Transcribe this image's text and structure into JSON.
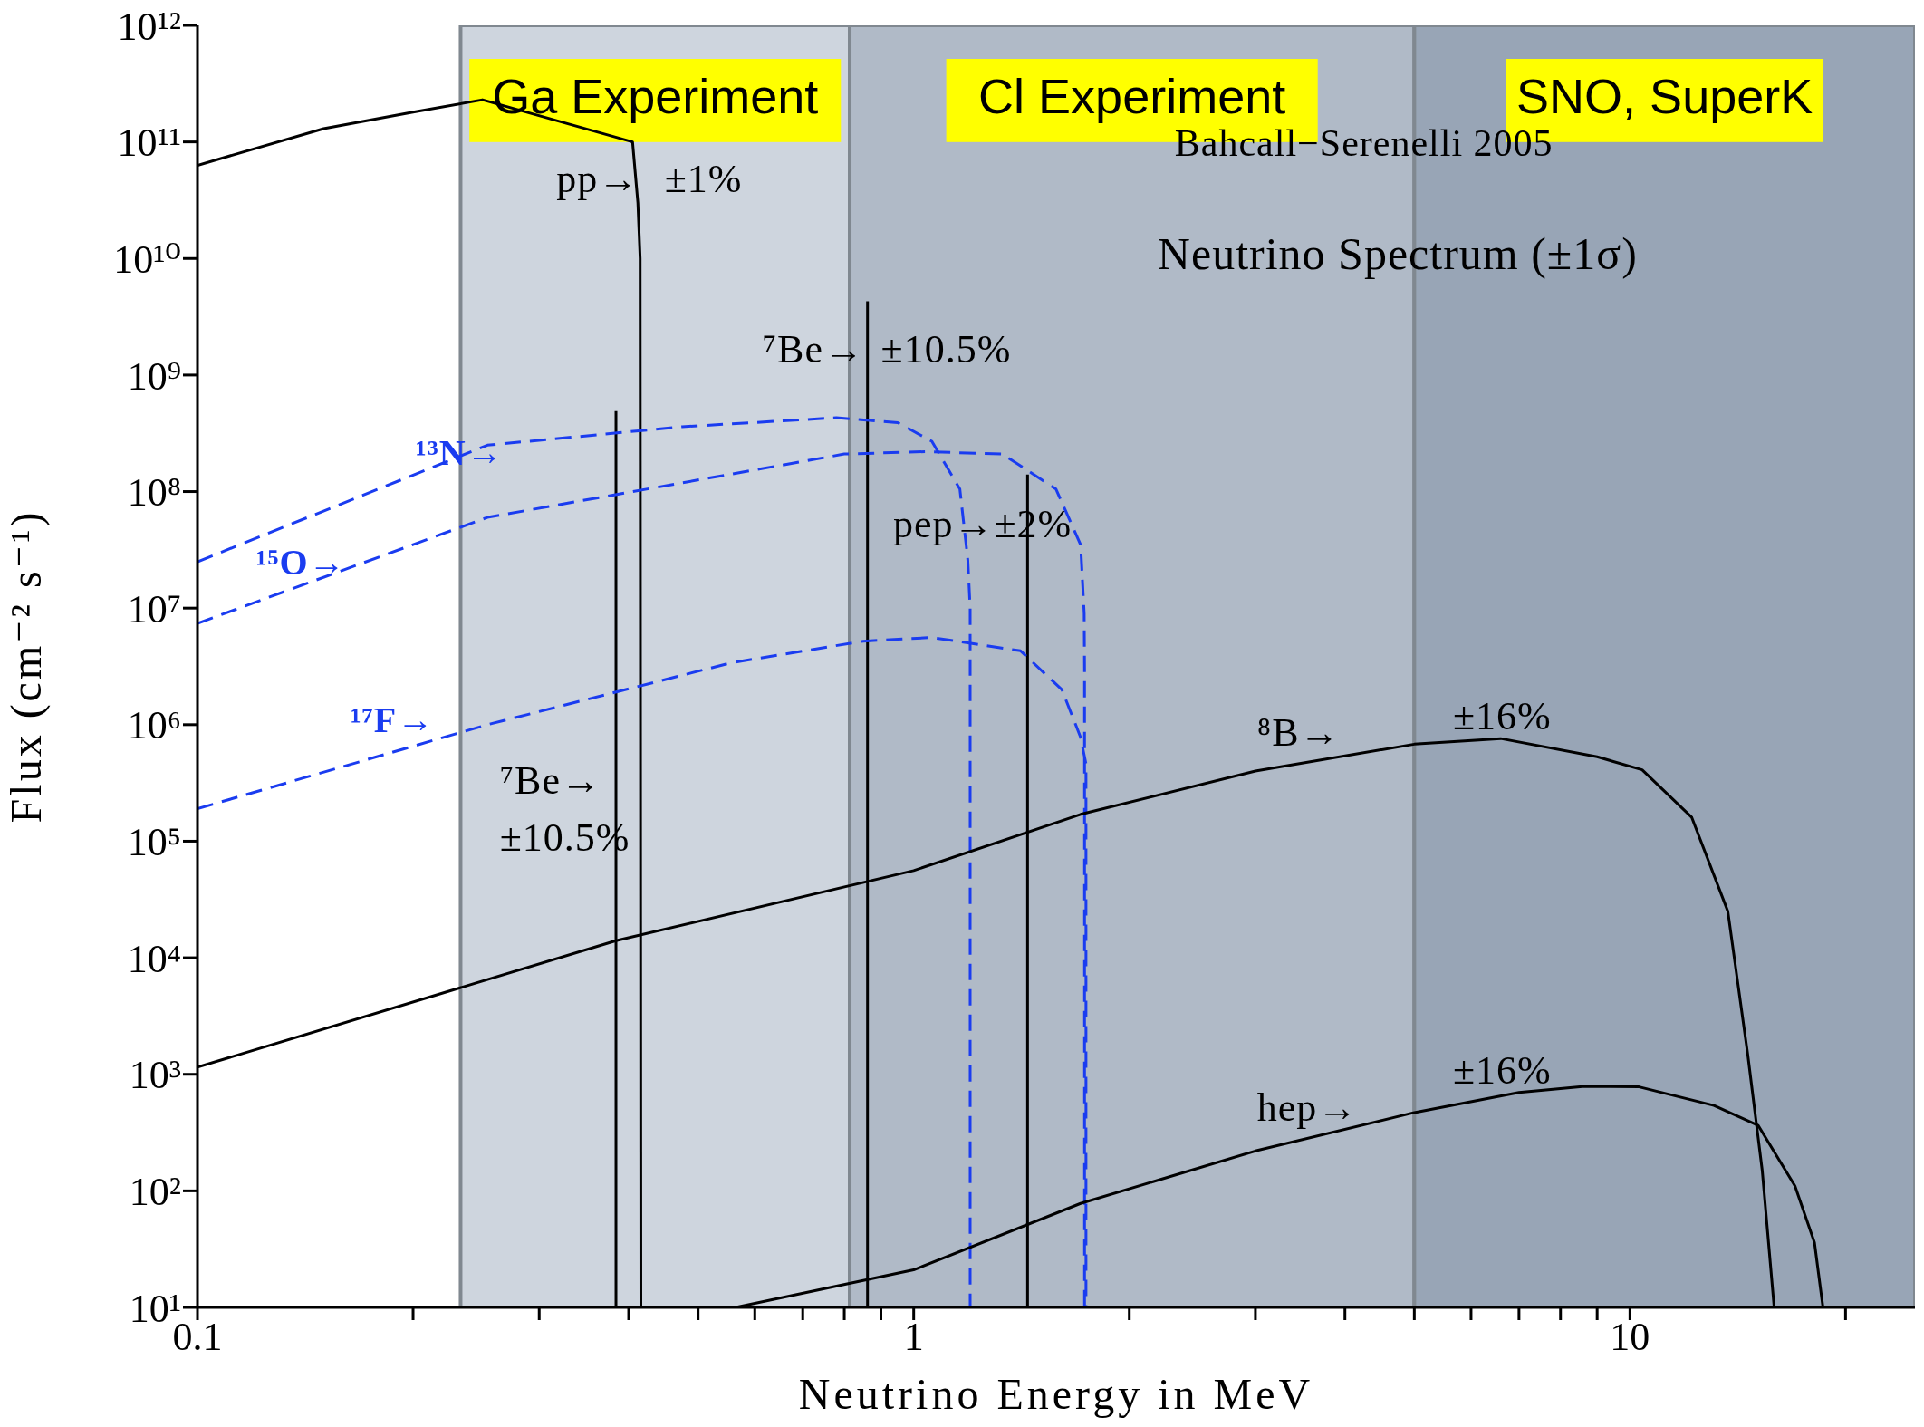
{
  "chart_data": {
    "type": "line",
    "xlabel": "Neutrino Energy in MeV",
    "ylabel": "Flux (cm⁻² s⁻¹)",
    "log": "xy",
    "xlim": [
      0.1,
      25
    ],
    "ylim": [
      10,
      1000000000000.0
    ],
    "xticks": [
      {
        "value": 0.1,
        "label": "0.1"
      },
      {
        "value": 0.2,
        "label": null
      },
      {
        "value": 0.3,
        "label": null
      },
      {
        "value": 0.4,
        "label": null
      },
      {
        "value": 0.5,
        "label": null
      },
      {
        "value": 0.6,
        "label": null
      },
      {
        "value": 0.7,
        "label": null
      },
      {
        "value": 0.8,
        "label": null
      },
      {
        "value": 0.9,
        "label": null
      },
      1,
      {
        "value": 2,
        "label": null
      },
      {
        "value": 3,
        "label": null
      },
      {
        "value": 4,
        "label": null
      },
      {
        "value": 5,
        "label": null
      },
      {
        "value": 6,
        "label": null
      },
      {
        "value": 7,
        "label": null
      },
      {
        "value": 8,
        "label": null
      },
      {
        "value": 9,
        "label": null
      },
      10,
      {
        "value": 20,
        "label": null
      }
    ],
    "yticks": [
      {
        "value": 10,
        "label": "10¹"
      },
      {
        "value": 100,
        "label": "10²"
      },
      {
        "value": 1000,
        "label": "10³"
      },
      {
        "value": 10000,
        "label": "10⁴"
      },
      {
        "value": 100000,
        "label": "10⁵"
      },
      {
        "value": 1000000,
        "label": "10⁶"
      },
      {
        "value": 10000000,
        "label": "10⁷"
      },
      {
        "value": 100000000,
        "label": "10⁸"
      },
      {
        "value": 1000000000,
        "label": "10⁹"
      },
      {
        "value": 10000000000,
        "label": "10¹⁰"
      },
      {
        "value": 100000000000,
        "label": "10¹¹"
      },
      {
        "value": 1000000000000,
        "label": "10¹²"
      }
    ],
    "bands": [
      {
        "axis": "x",
        "from": 0.233,
        "to": 0.814,
        "label": "Ga Experiment",
        "color": "#ced5de"
      },
      {
        "axis": "x",
        "from": 0.814,
        "to": 5,
        "label": "Cl Experiment",
        "color": "#b0bac7"
      },
      {
        "axis": "x",
        "from": 5,
        "to": 25,
        "label": "SNO, SuperK",
        "color": "#98a5b6"
      }
    ],
    "series": [
      {
        "color": "#000000",
        "line_style": "solid",
        "x": [
          0.1,
          0.15,
          0.2,
          0.25,
          0.405,
          0.412,
          0.415,
          0.416
        ],
        "values": [
          63000000000.0,
          130000000000.0,
          180000000000.0,
          230000000000.0,
          100000000000.0,
          30000000000.0,
          10000000000.0,
          10
        ]
      },
      {
        "color": "#000000",
        "line_style": "solid",
        "x": [
          0.384,
          0.384
        ],
        "values": [
          10,
          490000000.0
        ]
      },
      {
        "color": "#000000",
        "line_style": "solid",
        "x": [
          0.862,
          0.862
        ],
        "values": [
          10,
          4300000000.0
        ]
      },
      {
        "color": "#000000",
        "line_style": "solid",
        "x": [
          1.442,
          1.442
        ],
        "values": [
          10,
          140000000.0
        ]
      },
      {
        "color": "#1a3cf0",
        "line_style": "dashed",
        "x": [
          0.1,
          0.254,
          0.475,
          0.78,
          0.95,
          1.06,
          1.16,
          1.19,
          1.199,
          1.199
        ],
        "values": [
          25000000.0,
          250000000.0,
          360000000.0,
          430000000.0,
          390000000.0,
          270000000.0,
          105000000.0,
          26000000.0,
          10000000.0,
          10
        ]
      },
      {
        "color": "#1a3cf0",
        "line_style": "dashed",
        "x": [
          0.1,
          0.254,
          0.8,
          1.04,
          1.33,
          1.58,
          1.71,
          1.73,
          1.732,
          1.732
        ],
        "values": [
          7400000.0,
          60000000.0,
          210000000.0,
          220000000.0,
          210000000.0,
          105000000.0,
          35000000.0,
          9000000.0,
          3000000.0,
          10
        ]
      },
      {
        "color": "#1a3cf0",
        "line_style": "dashed",
        "x": [
          0.1,
          0.254,
          0.557,
          0.85,
          1.06,
          1.41,
          1.61,
          1.71,
          1.74,
          1.74
        ],
        "values": [
          190000.0,
          1000000.0,
          3400000.0,
          5200000.0,
          5600000.0,
          4300000.0,
          2000000.0,
          780000.0,
          460000.0,
          10
        ]
      },
      {
        "color": "#000000",
        "line_style": "solid",
        "x": [
          0.1,
          0.384,
          1.0,
          1.71,
          3.0,
          5.0,
          6.6,
          9.0,
          10.4,
          12.2,
          13.7,
          14.6,
          15.3,
          15.9
        ],
        "values": [
          1150,
          14000,
          56000,
          170000,
          400000,
          680000,
          760000,
          530000,
          410000,
          160000,
          25000,
          1500,
          150,
          10
        ]
      },
      {
        "color": "#000000",
        "line_style": "solid",
        "x": [
          0.564,
          1.0,
          1.71,
          3.0,
          5.0,
          7.0,
          8.65,
          10.3,
          13.1,
          15.1,
          17.0,
          18.1,
          18.6
        ],
        "values": [
          10,
          21,
          78,
          220,
          470,
          700,
          790,
          780,
          540,
          365,
          110,
          36,
          10
        ]
      }
    ],
    "annotations": [
      "pp→",
      "±1%",
      "⁷Be→",
      "±10.5%",
      "pep→±2%",
      "¹³N→",
      "¹⁵O→",
      "¹⁷F→",
      "⁸B→",
      "±16%",
      "hep→",
      "±16%",
      "⁷Be→",
      "±10.5%",
      "Bahcall−Serenelli 2005",
      "Neutrino Spectrum (±1σ)"
    ]
  }
}
